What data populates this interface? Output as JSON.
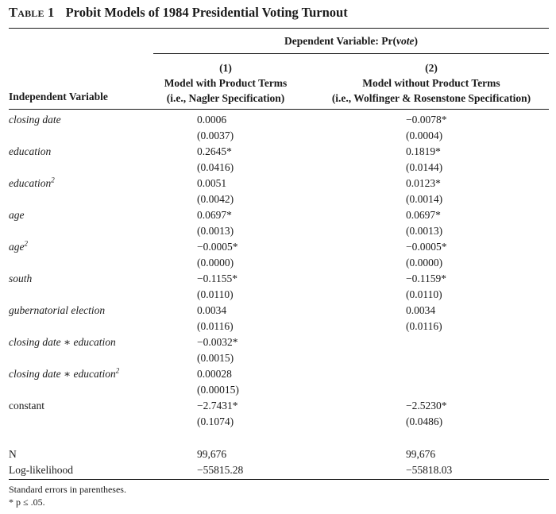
{
  "table": {
    "number": "Table 1",
    "title": "Probit Models of 1984 Presidential Voting Turnout",
    "dependent_variable_prefix": "Dependent Variable: Pr(",
    "dependent_variable_italic": "vote",
    "dependent_variable_suffix": ")",
    "independent_variable_header": "Independent Variable",
    "columns": [
      {
        "num": "(1)",
        "line1": "Model with Product Terms",
        "line2": "(i.e., Nagler Specification)"
      },
      {
        "num": "(2)",
        "line1": "Model without Product Terms",
        "line2": "(i.e., Wolfinger & Rosenstone Specification)"
      }
    ],
    "rows": [
      {
        "label": "closing date",
        "c1": "0.0006",
        "c2": "−0.0078*"
      },
      {
        "label": "",
        "c1": "(0.0037)",
        "c2": "(0.0004)"
      },
      {
        "label": "education",
        "c1": "0.2645*",
        "c2": "0.1819*"
      },
      {
        "label": "",
        "c1": "(0.0416)",
        "c2": "(0.0144)"
      },
      {
        "label": "education",
        "sup": "2",
        "c1": "0.0051",
        "c2": "0.0123*"
      },
      {
        "label": "",
        "c1": "(0.0042)",
        "c2": "(0.0014)"
      },
      {
        "label": "age",
        "c1": "0.0697*",
        "c2": "0.0697*"
      },
      {
        "label": "",
        "c1": "(0.0013)",
        "c2": "(0.0013)"
      },
      {
        "label": "age",
        "sup": "2",
        "c1": "−0.0005*",
        "c2": "−0.0005*"
      },
      {
        "label": "",
        "c1": "(0.0000)",
        "c2": "(0.0000)"
      },
      {
        "label": "south",
        "c1": "−0.1155*",
        "c2": "−0.1159*"
      },
      {
        "label": "",
        "c1": "(0.0110)",
        "c2": "(0.0110)"
      },
      {
        "label": "gubernatorial election",
        "c1": "0.0034",
        "c2": "0.0034"
      },
      {
        "label": "",
        "c1": "(0.0116)",
        "c2": "(0.0116)"
      },
      {
        "label": "closing date ∗ education",
        "c1": "−0.0032*",
        "c2": ""
      },
      {
        "label": "",
        "c1": "(0.0015)",
        "c2": ""
      },
      {
        "label": "closing date ∗ education",
        "sup": "2",
        "c1": "0.00028",
        "c2": ""
      },
      {
        "label": "",
        "c1": "(0.00015)",
        "c2": ""
      },
      {
        "label": "constant",
        "upright": true,
        "c1": "−2.7431*",
        "c2": "−2.5230*"
      },
      {
        "label": "",
        "c1": "(0.1074)",
        "c2": "(0.0486)"
      }
    ],
    "stats": [
      {
        "label": "N",
        "c1": "99,676",
        "c2": "99,676"
      },
      {
        "label": "Log-likelihood",
        "c1": "−55815.28",
        "c2": "−55818.03"
      }
    ],
    "notes": [
      "Standard errors in parentheses.",
      "* p ≤ .05."
    ]
  }
}
